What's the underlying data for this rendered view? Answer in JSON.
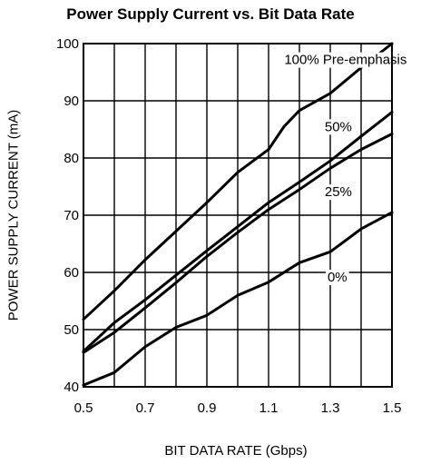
{
  "chart_data": {
    "type": "line",
    "title": "Power Supply Current vs. Bit Data Rate",
    "xlabel": "BIT DATA RATE (Gbps)",
    "ylabel": "POWER SUPPLY CURRENT (mA)",
    "xlim": [
      0.5,
      1.5
    ],
    "ylim": [
      40,
      100
    ],
    "grid": true,
    "x_ticks": [
      0.5,
      0.7,
      0.9,
      1.1,
      1.3,
      1.5
    ],
    "x_tick_labels": [
      "0.5",
      "0.7",
      "0.9",
      "1.1",
      "1.3",
      "1.5"
    ],
    "y_ticks": [
      40,
      50,
      60,
      70,
      80,
      90,
      100
    ],
    "y_tick_labels": [
      "40",
      "50",
      "60",
      "70",
      "80",
      "90",
      "100"
    ],
    "series": [
      {
        "name": "100% Pre-emphasis",
        "x": [
          0.5,
          0.6,
          0.7,
          0.8,
          0.9,
          1.0,
          1.1,
          1.15,
          1.2,
          1.3,
          1.4,
          1.5
        ],
        "y": [
          51.8,
          56.8,
          62.2,
          67.2,
          72.2,
          77.5,
          81.5,
          85.5,
          88.3,
          91.3,
          95.8,
          100
        ]
      },
      {
        "name": "50%",
        "x": [
          0.5,
          0.6,
          0.7,
          0.8,
          0.9,
          1.0,
          1.1,
          1.2,
          1.3,
          1.4,
          1.5
        ],
        "y": [
          46.2,
          51.2,
          55.2,
          59.5,
          63.8,
          68.0,
          72.2,
          75.8,
          79.5,
          83.8,
          88.0
        ]
      },
      {
        "name": "25%",
        "x": [
          0.5,
          0.6,
          0.7,
          0.8,
          0.9,
          1.0,
          1.1,
          1.2,
          1.3,
          1.4,
          1.5
        ],
        "y": [
          46.0,
          49.5,
          53.8,
          58.2,
          62.8,
          67.0,
          71.0,
          74.5,
          78.2,
          81.5,
          84.2
        ]
      },
      {
        "name": "0%",
        "x": [
          0.5,
          0.6,
          0.7,
          0.8,
          0.9,
          1.0,
          1.1,
          1.2,
          1.3,
          1.4,
          1.5
        ],
        "y": [
          40.3,
          42.5,
          47.0,
          50.4,
          52.5,
          56.0,
          58.3,
          61.7,
          63.6,
          67.6,
          70.5
        ]
      }
    ],
    "annotations": [
      {
        "text": "100% Pre-emphasis",
        "x": 1.151,
        "y": 97.2
      },
      {
        "text": "50%",
        "x": 1.282,
        "y": 85.5
      },
      {
        "text": "25%",
        "x": 1.282,
        "y": 74.1
      },
      {
        "text": "0%",
        "x": 1.291,
        "y": 59.2
      }
    ]
  }
}
